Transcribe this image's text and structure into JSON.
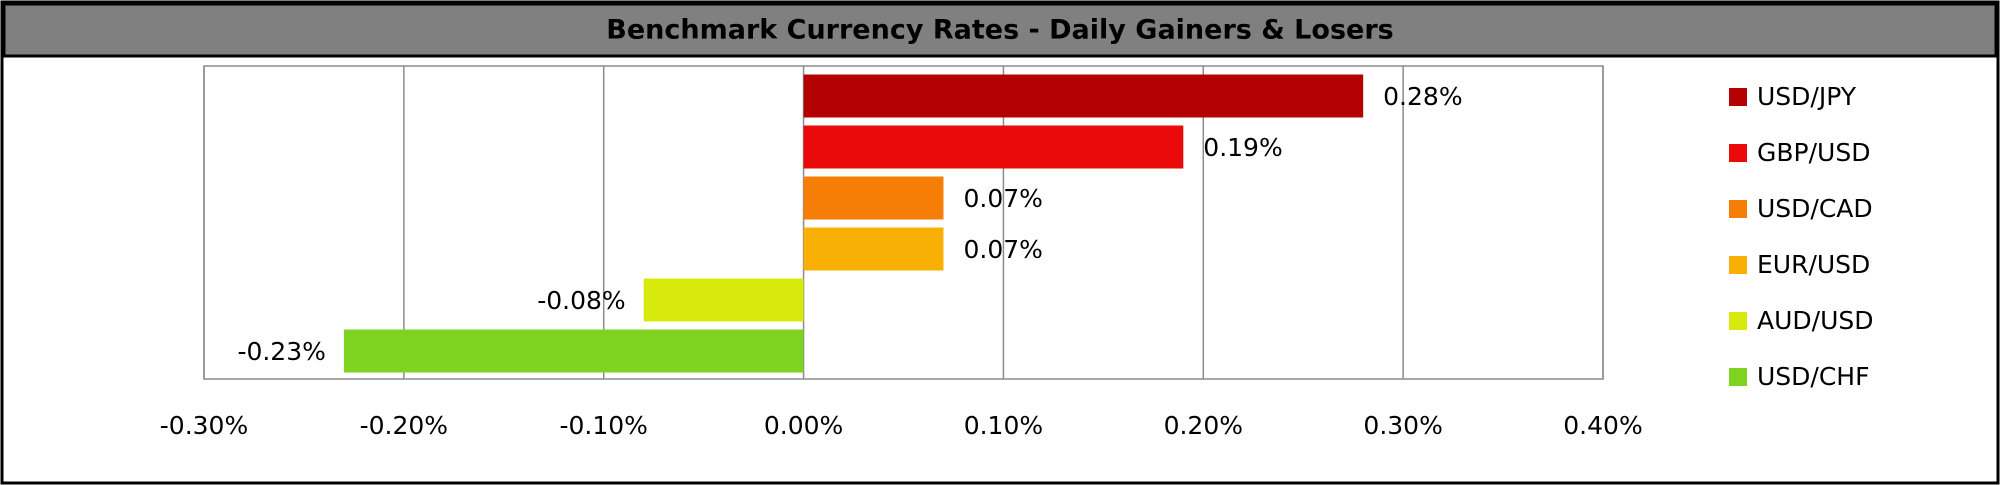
{
  "chart_data": {
    "type": "bar",
    "orientation": "horizontal",
    "title": "Benchmark Currency Rates - Daily Gainers & Losers",
    "series": [
      {
        "name": "USD/JPY",
        "color": "#b30000",
        "values": [
          0.28
        ],
        "value_labels": [
          "0.28%"
        ]
      },
      {
        "name": "GBP/USD",
        "color": "#ea0a0a",
        "values": [
          0.19
        ],
        "value_labels": [
          "0.19%"
        ]
      },
      {
        "name": "USD/CAD",
        "color": "#f67e07",
        "values": [
          0.07
        ],
        "value_labels": [
          "0.07%"
        ]
      },
      {
        "name": "EUR/USD",
        "color": "#f8b005",
        "values": [
          0.07
        ],
        "value_labels": [
          "0.07%"
        ]
      },
      {
        "name": "AUD/USD",
        "color": "#d7ea0c",
        "values": [
          -0.08
        ],
        "value_labels": [
          "-0.08%"
        ]
      },
      {
        "name": "USD/CHF",
        "color": "#7ed321",
        "values": [
          -0.23
        ],
        "value_labels": [
          "-0.23%"
        ]
      }
    ],
    "xlim": [
      -0.3,
      0.4
    ],
    "xticks": [
      {
        "value": -0.3,
        "label": "-0.30%"
      },
      {
        "value": -0.2,
        "label": "-0.20%"
      },
      {
        "value": -0.1,
        "label": "-0.10%"
      },
      {
        "value": 0,
        "label": "0.00%"
      },
      {
        "value": 0.1,
        "label": "0.10%"
      },
      {
        "value": 0.2,
        "label": "0.20%"
      },
      {
        "value": 0.3,
        "label": "0.30%"
      },
      {
        "value": 0.4,
        "label": "0.40%"
      }
    ],
    "grid": true,
    "legend": "right"
  }
}
